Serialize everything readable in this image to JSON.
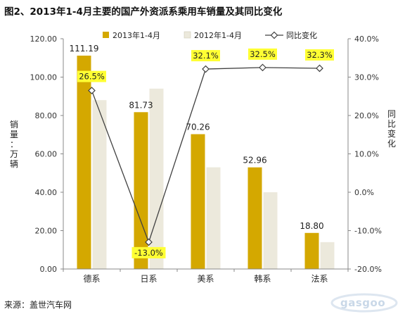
{
  "title": "图2、2013年1-4月主要的国产外资派系乘用车销量及其同比变化",
  "source": "来源：盖世汽车网",
  "watermark": "gasgoo",
  "chart_data": {
    "type": "bar",
    "categories": [
      "德系",
      "日系",
      "美系",
      "韩系",
      "法系"
    ],
    "series": [
      {
        "name": "2013年1-4月",
        "type": "bar",
        "axis": "left",
        "color": "#d4a800",
        "values": [
          111.19,
          81.73,
          70.26,
          52.96,
          18.8
        ],
        "labels": [
          "111.19",
          "81.73",
          "70.26",
          "52.96",
          "18.80"
        ]
      },
      {
        "name": "2012年1-4月",
        "type": "bar",
        "axis": "left",
        "color": "#ece9dc",
        "values": [
          88.0,
          94.0,
          53.0,
          40.0,
          14.0
        ]
      },
      {
        "name": "同比变化",
        "type": "line",
        "axis": "right",
        "color": "#404040",
        "values": [
          26.5,
          -13.0,
          32.1,
          32.5,
          32.3
        ],
        "labels": [
          "26.5%",
          "-13.0%",
          "32.1%",
          "32.5%",
          "32.3%"
        ]
      }
    ],
    "ylabel_left": "销量：万辆",
    "ylabel_right": "同比变化",
    "ylim_left": [
      0,
      120
    ],
    "ylim_right": [
      -20,
      40
    ],
    "left_ticks": [
      "0.00",
      "20.00",
      "40.00",
      "60.00",
      "80.00",
      "100.00",
      "120.00"
    ],
    "right_ticks": [
      "-20.0%",
      "-10.0%",
      "0.0%",
      "10.0%",
      "20.0%",
      "30.0%",
      "40.0%"
    ],
    "grid": false,
    "legend_position": "top",
    "label_highlight_color": "#ffff33"
  }
}
